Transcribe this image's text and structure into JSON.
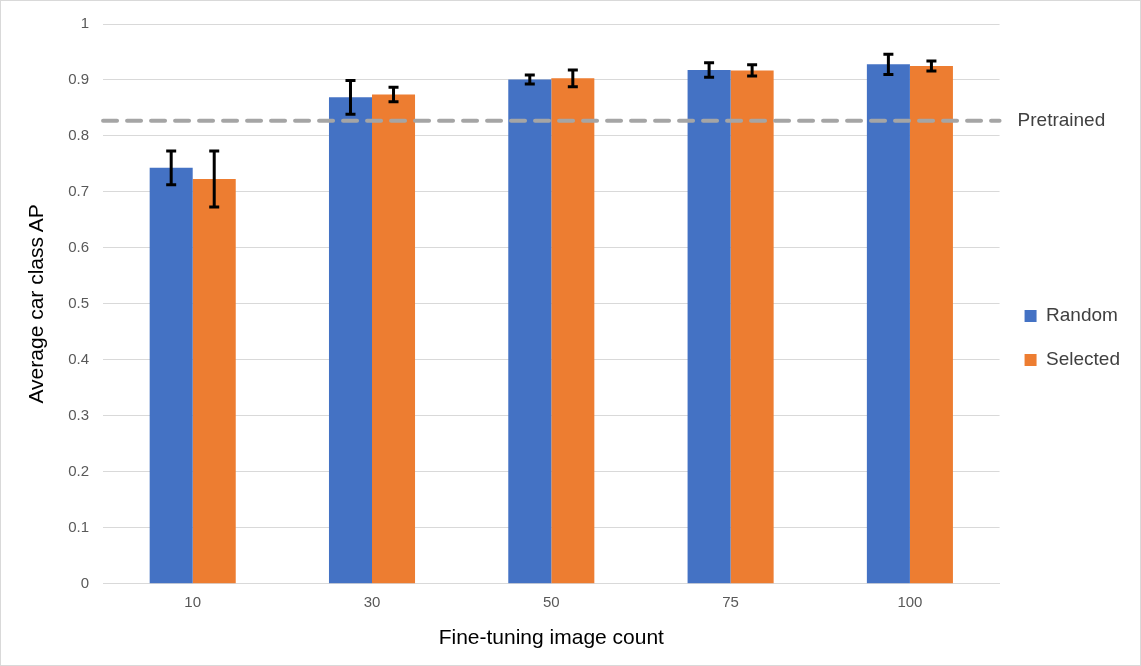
{
  "chart_data": {
    "type": "bar",
    "xlabel": "Fine-tuning image count",
    "ylabel": "Average car class AP",
    "categories": [
      "10",
      "30",
      "50",
      "75",
      "100"
    ],
    "series": [
      {
        "name": "Random",
        "color": "#4472c4",
        "values": [
          0.743,
          0.869,
          0.901,
          0.918,
          0.928
        ],
        "errors": [
          0.03,
          0.03,
          0.008,
          0.013,
          0.018
        ]
      },
      {
        "name": "Selected",
        "color": "#ed7d31",
        "values": [
          0.723,
          0.874,
          0.903,
          0.917,
          0.925
        ],
        "errors": [
          0.05,
          0.013,
          0.015,
          0.01,
          0.009
        ]
      }
    ],
    "ylim": [
      0,
      1
    ],
    "yticks": [
      0,
      0.1,
      0.2,
      0.3,
      0.4,
      0.5,
      0.6,
      0.7,
      0.8,
      0.9,
      1
    ],
    "grid": "y",
    "legend": "right",
    "ref_lines": [
      {
        "axis": "y",
        "value": 0.827,
        "label": "Pretrained",
        "color": "#a5a5a5",
        "line_style": "dashed"
      }
    ]
  }
}
